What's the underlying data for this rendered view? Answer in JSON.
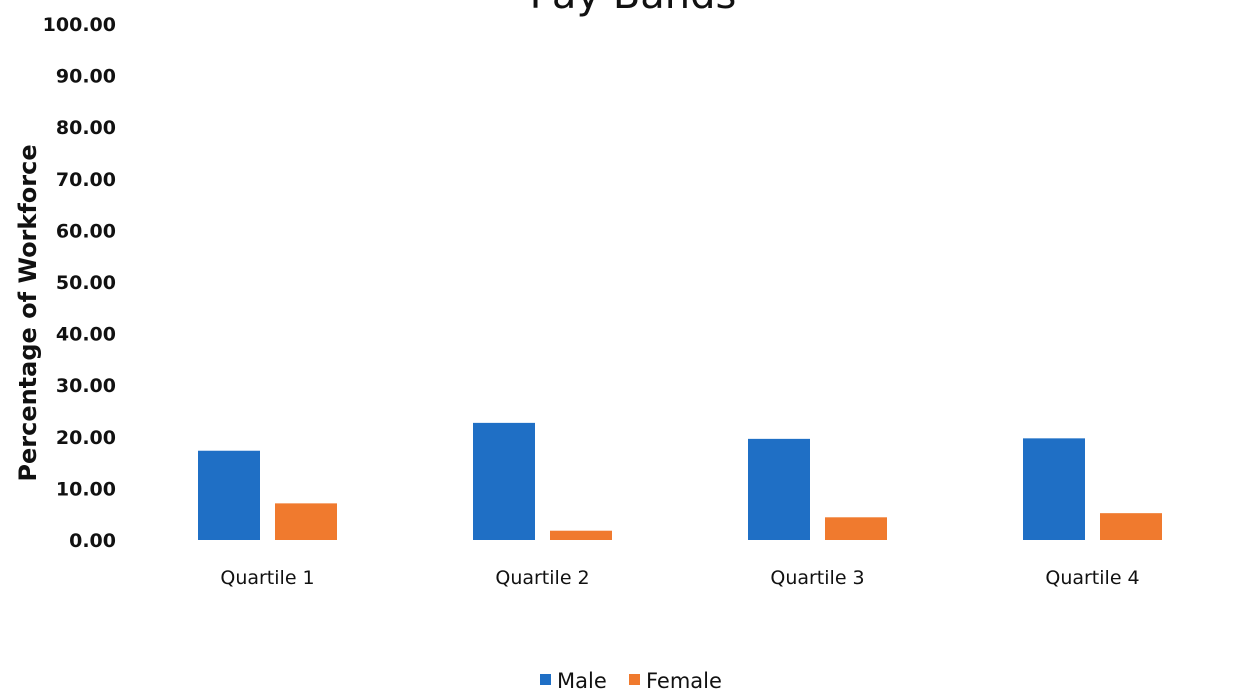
{
  "chart_data": {
    "type": "bar",
    "title": "Pay Bands",
    "xlabel": "",
    "ylabel": "Percentage of Workforce",
    "categories": [
      "Quartile 1",
      "Quartile 2",
      "Quartile 3",
      "Quartile 4"
    ],
    "series": [
      {
        "name": "Male",
        "values": [
          17.3,
          22.7,
          19.6,
          19.7
        ]
      },
      {
        "name": "Female",
        "values": [
          7.1,
          1.8,
          4.4,
          5.2
        ]
      }
    ],
    "ylim": [
      0,
      100
    ],
    "yticks": [
      "0.00",
      "10.00",
      "20.00",
      "30.00",
      "40.00",
      "50.00",
      "60.00",
      "70.00",
      "80.00",
      "90.00",
      "100.00"
    ],
    "grid": false,
    "legend": "bottom-center"
  },
  "colors": {
    "Male": "#1f6fc5",
    "Female": "#f07a2e",
    "text": "#111111",
    "background": "#ffffff"
  }
}
